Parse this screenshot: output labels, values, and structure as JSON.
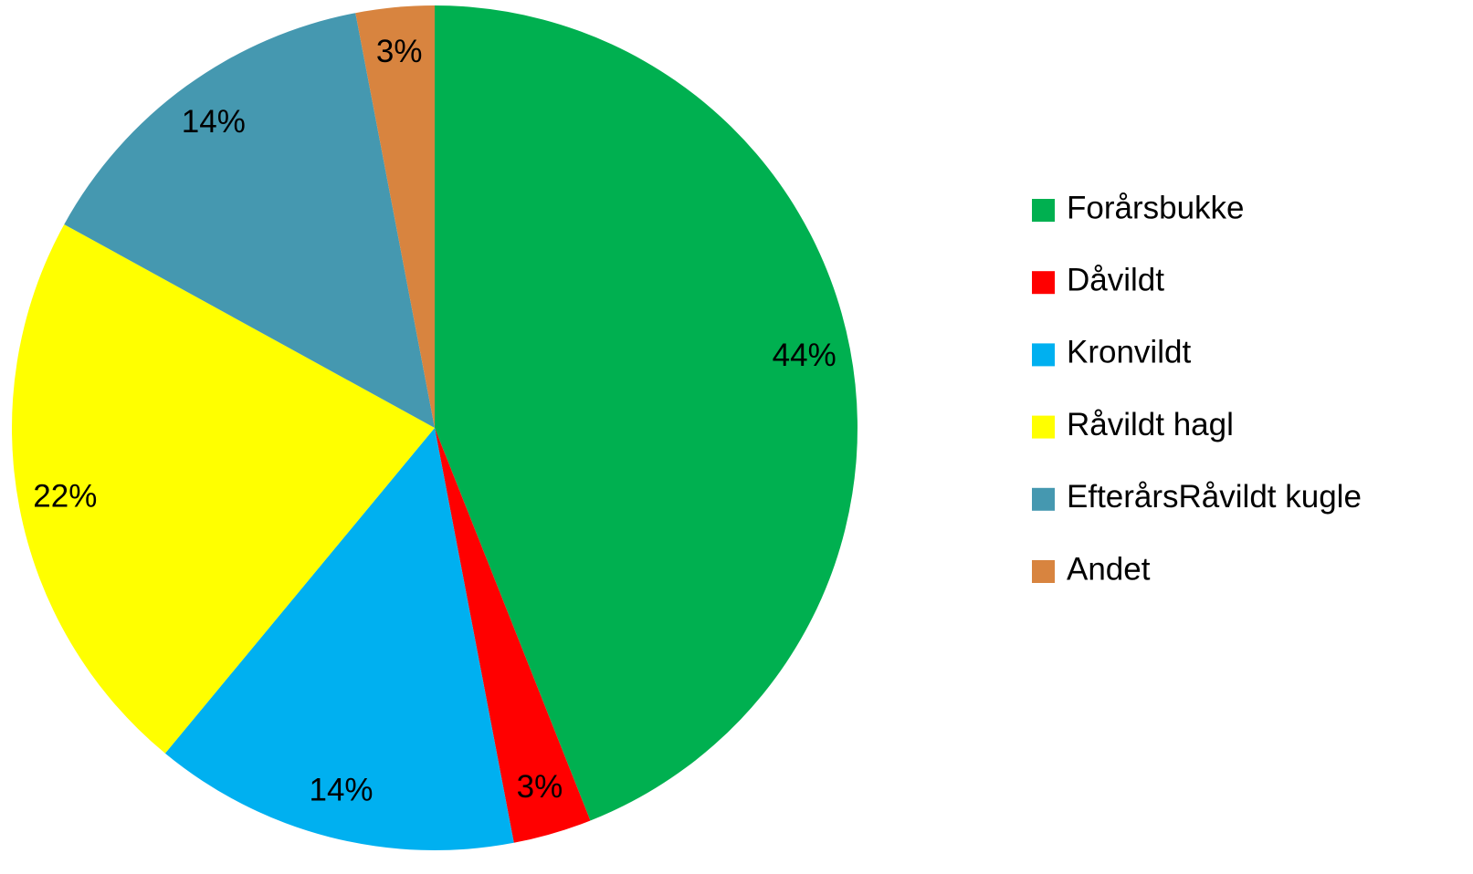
{
  "chart_data": {
    "type": "pie",
    "categories": [
      "Forårsbukke",
      "Dåvildt",
      "Kronvildt",
      "Råvildt hagl",
      "EfterårsRåvildt kugle",
      "Andet"
    ],
    "values": [
      44,
      3,
      14,
      22,
      14,
      3
    ],
    "value_labels": [
      "44%",
      "3%",
      "14%",
      "22%",
      "14%",
      "3%"
    ],
    "colors": [
      "#00b050",
      "#ff0000",
      "#00b0f0",
      "#ffff00",
      "#4598b0",
      "#d8843f"
    ],
    "legend": "right"
  }
}
